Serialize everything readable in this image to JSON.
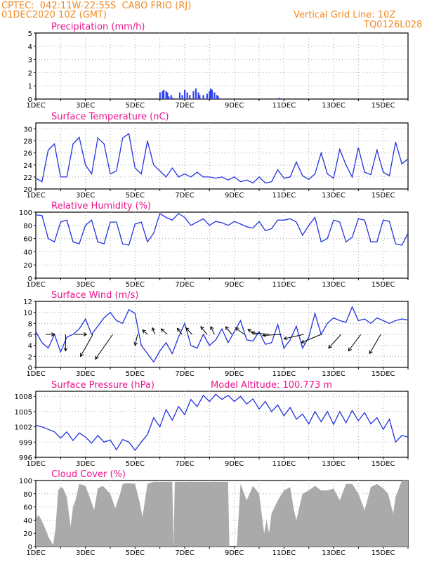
{
  "header": {
    "line1_left": "CPTEC:  042:11W-22:55S  CABO FRIO (RJ)",
    "line2_left": "01DEC2020 10Z (GMT)",
    "line1_right": "Vertical Grid Line: 10Z",
    "line2_right": "TQ0126L028"
  },
  "colors": {
    "title": "#e8158c",
    "series": "#2233dd",
    "header": "#f08a24",
    "cloud": "#aaaaaa",
    "bars": "#3344ee"
  },
  "chart_data": [
    {
      "type": "bar",
      "title": "Precipitation (mm/h)",
      "ylim": [
        0,
        5
      ],
      "yticks": [
        0,
        1,
        2,
        3,
        4,
        5
      ],
      "xlim": [
        1,
        16
      ],
      "xticks": [
        "1DEC",
        "3DEC",
        "5DEC",
        "7DEC",
        "9DEC",
        "11DEC",
        "13DEC",
        "15DEC"
      ],
      "x": [
        6.0,
        6.1,
        6.15,
        6.25,
        6.3,
        6.35,
        6.45,
        6.5,
        6.8,
        6.9,
        7.0,
        7.1,
        7.2,
        7.35,
        7.45,
        7.55,
        7.6,
        7.75,
        7.9,
        8.0,
        8.05,
        8.1,
        8.2,
        8.3,
        8.35,
        10.8
      ],
      "values": [
        0.5,
        0.6,
        0.7,
        0.6,
        0.5,
        0.2,
        0.3,
        0.1,
        0.5,
        0.3,
        0.7,
        0.5,
        0.3,
        0.6,
        0.8,
        0.5,
        0.3,
        0.3,
        0.4,
        0.6,
        0.8,
        0.7,
        0.5,
        0.3,
        0.2,
        0.1
      ]
    },
    {
      "type": "line",
      "title": "Surface Temperature (nC)",
      "ylim": [
        20,
        31
      ],
      "yticks": [
        20,
        22,
        24,
        26,
        28,
        30
      ],
      "xlim": [
        1,
        16
      ],
      "xticks": [
        "1DEC",
        "3DEC",
        "5DEC",
        "7DEC",
        "9DEC",
        "11DEC",
        "13DEC",
        "15DEC"
      ],
      "x": [
        1.0,
        1.25,
        1.5,
        1.75,
        2.0,
        2.25,
        2.5,
        2.75,
        3.0,
        3.25,
        3.5,
        3.75,
        4.0,
        4.25,
        4.5,
        4.75,
        5.0,
        5.25,
        5.5,
        5.75,
        6.0,
        6.25,
        6.5,
        6.75,
        7.0,
        7.25,
        7.5,
        7.75,
        8.0,
        8.25,
        8.5,
        8.75,
        9.0,
        9.25,
        9.5,
        9.75,
        10.0,
        10.25,
        10.5,
        10.75,
        11.0,
        11.25,
        11.5,
        11.75,
        12.0,
        12.25,
        12.5,
        12.75,
        13.0,
        13.25,
        13.5,
        13.75,
        14.0,
        14.25,
        14.5,
        14.75,
        15.0,
        15.25,
        15.5,
        15.75,
        16.0
      ],
      "values": [
        21.8,
        21.2,
        26.5,
        27.5,
        22.0,
        22.0,
        27.5,
        28.6,
        24.0,
        22.5,
        28.5,
        27.5,
        22.5,
        23.0,
        28.5,
        29.2,
        23.5,
        22.5,
        28.0,
        24.0,
        23.0,
        22.0,
        23.5,
        22.0,
        22.5,
        22.0,
        22.8,
        22.0,
        22.0,
        21.8,
        22.0,
        21.5,
        22.0,
        21.2,
        21.5,
        21.0,
        22.0,
        21.0,
        21.2,
        23.2,
        21.8,
        22.0,
        24.5,
        22.2,
        21.6,
        22.5,
        26.0,
        22.5,
        21.8,
        26.6,
        24.0,
        22.0,
        26.9,
        22.8,
        22.4,
        26.5,
        22.8,
        22.2,
        27.8,
        24.2,
        25.0
      ]
    },
    {
      "type": "line",
      "title": "Relative Humidity (%)",
      "ylim": [
        0,
        100
      ],
      "yticks": [
        0,
        20,
        40,
        60,
        80,
        100
      ],
      "xlim": [
        1,
        16
      ],
      "xticks": [
        "1DEC",
        "3DEC",
        "5DEC",
        "7DEC",
        "9DEC",
        "11DEC",
        "13DEC",
        "15DEC"
      ],
      "x": [
        1.0,
        1.25,
        1.5,
        1.75,
        2.0,
        2.25,
        2.5,
        2.75,
        3.0,
        3.25,
        3.5,
        3.75,
        4.0,
        4.25,
        4.5,
        4.75,
        5.0,
        5.25,
        5.5,
        5.75,
        6.0,
        6.25,
        6.5,
        6.75,
        7.0,
        7.25,
        7.5,
        7.75,
        8.0,
        8.25,
        8.5,
        8.75,
        9.0,
        9.25,
        9.5,
        9.75,
        10.0,
        10.25,
        10.5,
        10.75,
        11.0,
        11.25,
        11.5,
        11.75,
        12.0,
        12.25,
        12.5,
        12.75,
        13.0,
        13.25,
        13.5,
        13.75,
        14.0,
        14.25,
        14.5,
        14.75,
        15.0,
        15.25,
        15.5,
        15.75,
        16.0
      ],
      "values": [
        96,
        95,
        60,
        55,
        85,
        88,
        55,
        52,
        80,
        88,
        55,
        52,
        85,
        85,
        52,
        50,
        82,
        85,
        55,
        68,
        98,
        92,
        88,
        98,
        92,
        80,
        85,
        90,
        80,
        86,
        84,
        80,
        86,
        82,
        78,
        76,
        86,
        72,
        75,
        88,
        88,
        90,
        85,
        65,
        80,
        92,
        55,
        60,
        88,
        85,
        55,
        62,
        90,
        88,
        55,
        55,
        88,
        86,
        52,
        50,
        68
      ]
    },
    {
      "type": "line",
      "title": "Surface Wind (m/s)",
      "ylim": [
        0,
        12
      ],
      "yticks": [
        0,
        2,
        4,
        6,
        8,
        10,
        12
      ],
      "xlim": [
        1,
        16
      ],
      "xticks": [
        "1DEC",
        "3DEC",
        "5DEC",
        "7DEC",
        "9DEC",
        "11DEC",
        "13DEC",
        "15DEC"
      ],
      "x": [
        1.0,
        1.25,
        1.5,
        1.75,
        2.0,
        2.25,
        2.5,
        2.75,
        3.0,
        3.25,
        3.5,
        3.75,
        4.0,
        4.25,
        4.5,
        4.75,
        5.0,
        5.25,
        5.5,
        5.75,
        6.0,
        6.25,
        6.5,
        6.75,
        7.0,
        7.25,
        7.5,
        7.75,
        8.0,
        8.25,
        8.5,
        8.75,
        9.0,
        9.25,
        9.5,
        9.75,
        10.0,
        10.25,
        10.5,
        10.75,
        11.0,
        11.25,
        11.5,
        11.75,
        12.0,
        12.25,
        12.5,
        12.75,
        13.0,
        13.25,
        13.5,
        13.75,
        14.0,
        14.25,
        14.5,
        14.75,
        15.0,
        15.25,
        15.5,
        15.75,
        16.0
      ],
      "values": [
        6.5,
        4.5,
        3.5,
        6.0,
        2.8,
        5.5,
        6.0,
        7.0,
        8.8,
        6.0,
        7.5,
        9.0,
        10.0,
        8.5,
        8.0,
        10.5,
        9.8,
        4.0,
        2.5,
        1.0,
        3.0,
        4.5,
        2.5,
        5.5,
        8.0,
        4.0,
        3.5,
        6.0,
        4.0,
        5.0,
        7.0,
        4.5,
        6.5,
        8.5,
        5.0,
        4.8,
        6.5,
        4.2,
        4.5,
        7.8,
        3.5,
        5.0,
        7.5,
        3.5,
        5.5,
        9.8,
        6.0,
        8.0,
        9.0,
        8.5,
        8.2,
        11.0,
        8.5,
        8.8,
        8.0,
        9.0,
        8.5,
        8.0,
        8.5,
        8.8,
        8.6
      ],
      "arrows": [
        {
          "x": 1.4,
          "dx": 0.35,
          "dy": 0.0
        },
        {
          "x": 2.2,
          "dx": 0.0,
          "dy": -3.0
        },
        {
          "x": 2.55,
          "dx": 0.5,
          "dy": 0.0
        },
        {
          "x": 3.3,
          "dx": -0.5,
          "dy": -4.0
        },
        {
          "x": 4.1,
          "dx": -0.7,
          "dy": -4.5
        },
        {
          "x": 5.1,
          "dx": -0.1,
          "dy": -2.0
        },
        {
          "x": 5.5,
          "dx": -0.2,
          "dy": 0.8
        },
        {
          "x": 5.8,
          "dx": -0.1,
          "dy": 1.2
        },
        {
          "x": 6.3,
          "dx": -0.25,
          "dy": 1.0
        },
        {
          "x": 6.9,
          "dx": -0.2,
          "dy": 1.1
        },
        {
          "x": 7.3,
          "dx": -0.25,
          "dy": 1.2
        },
        {
          "x": 7.9,
          "dx": -0.25,
          "dy": 1.4
        },
        {
          "x": 8.2,
          "dx": -0.15,
          "dy": 1.4
        },
        {
          "x": 8.9,
          "dx": -0.25,
          "dy": 1.4
        },
        {
          "x": 9.4,
          "dx": -0.35,
          "dy": 1.2
        },
        {
          "x": 9.9,
          "dx": -0.35,
          "dy": 0.9
        },
        {
          "x": 10.4,
          "dx": -0.7,
          "dy": 0.3
        },
        {
          "x": 10.9,
          "dx": -0.75,
          "dy": -0.2
        },
        {
          "x": 11.8,
          "dx": -0.8,
          "dy": -0.8
        },
        {
          "x": 12.5,
          "dx": -0.8,
          "dy": -1.5
        },
        {
          "x": 13.3,
          "dx": -0.5,
          "dy": -2.5
        },
        {
          "x": 14.1,
          "dx": -0.5,
          "dy": -3.0
        },
        {
          "x": 14.9,
          "dx": -0.45,
          "dy": -3.5
        }
      ]
    },
    {
      "type": "line",
      "title": "Surface Pressure (hPa)",
      "annotation": "Model Altitude: 100.773 m",
      "ylim": [
        996,
        1009
      ],
      "yticks": [
        996,
        999,
        1002,
        1005,
        1008
      ],
      "xlim": [
        1,
        16
      ],
      "xticks": [
        "1DEC",
        "3DEC",
        "5DEC",
        "7DEC",
        "9DEC",
        "11DEC",
        "13DEC",
        "15DEC"
      ],
      "x": [
        1.0,
        1.25,
        1.5,
        1.75,
        2.0,
        2.25,
        2.5,
        2.75,
        3.0,
        3.25,
        3.5,
        3.75,
        4.0,
        4.25,
        4.5,
        4.75,
        5.0,
        5.25,
        5.5,
        5.75,
        6.0,
        6.25,
        6.5,
        6.75,
        7.0,
        7.25,
        7.5,
        7.75,
        8.0,
        8.25,
        8.5,
        8.75,
        9.0,
        9.25,
        9.5,
        9.75,
        10.0,
        10.25,
        10.5,
        10.75,
        11.0,
        11.25,
        11.5,
        11.75,
        12.0,
        12.25,
        12.5,
        12.75,
        13.0,
        13.25,
        13.5,
        13.75,
        14.0,
        14.25,
        14.5,
        14.75,
        15.0,
        15.25,
        15.5,
        15.75,
        16.0
      ],
      "values": [
        1002.3,
        1002.0,
        1001.5,
        1001.0,
        999.8,
        1001.0,
        999.3,
        1000.8,
        1000.0,
        998.8,
        1000.3,
        999.0,
        999.4,
        997.5,
        999.5,
        999.0,
        997.4,
        999.0,
        1000.5,
        1003.8,
        1002.0,
        1005.4,
        1003.3,
        1006.0,
        1004.4,
        1007.4,
        1006.0,
        1008.2,
        1007.0,
        1008.4,
        1007.4,
        1008.2,
        1007.0,
        1008.0,
        1006.5,
        1007.5,
        1005.5,
        1007.0,
        1005.0,
        1006.3,
        1004.2,
        1005.8,
        1003.5,
        1004.5,
        1002.6,
        1005.0,
        1003.0,
        1005.0,
        1002.5,
        1005.0,
        1002.8,
        1005.2,
        1003.2,
        1004.8,
        1002.6,
        1003.8,
        1001.5,
        1003.5,
        999.0,
        1000.3,
        1000.0
      ]
    },
    {
      "type": "area",
      "title": "Cloud Cover (%)",
      "ylim": [
        0,
        100
      ],
      "yticks": [
        0,
        20,
        40,
        60,
        80,
        100
      ],
      "xlim": [
        1,
        16
      ],
      "xticks": [
        "1DEC",
        "3DEC",
        "5DEC",
        "7DEC",
        "9DEC",
        "11DEC",
        "13DEC",
        "15DEC"
      ],
      "x": [
        1.0,
        1.1,
        1.2,
        1.35,
        1.5,
        1.7,
        1.8,
        1.9,
        2.0,
        2.1,
        2.25,
        2.4,
        2.5,
        2.6,
        2.75,
        3.0,
        3.2,
        3.35,
        3.5,
        3.7,
        4.0,
        4.2,
        4.4,
        4.5,
        4.7,
        5.0,
        5.2,
        5.3,
        5.5,
        5.75,
        6.0,
        6.25,
        6.5,
        6.55,
        6.6,
        7.0,
        7.5,
        8.0,
        8.5,
        8.75,
        8.8,
        8.9,
        9.0,
        9.1,
        9.25,
        9.5,
        9.75,
        10.0,
        10.2,
        10.3,
        10.4,
        10.5,
        10.75,
        11.0,
        11.25,
        11.4,
        11.5,
        11.75,
        12.0,
        12.25,
        12.5,
        12.75,
        13.0,
        13.25,
        13.5,
        13.75,
        14.0,
        14.25,
        14.5,
        14.75,
        15.0,
        15.2,
        15.4,
        15.5,
        15.75,
        16.0
      ],
      "values": [
        40,
        48,
        42,
        30,
        15,
        2,
        30,
        85,
        90,
        88,
        75,
        30,
        60,
        70,
        95,
        92,
        72,
        55,
        88,
        92,
        80,
        58,
        80,
        95,
        96,
        95,
        65,
        45,
        95,
        98,
        98,
        98,
        98,
        0,
        98,
        98,
        98,
        98,
        98,
        98,
        0,
        0,
        0,
        0,
        95,
        70,
        92,
        80,
        20,
        40,
        20,
        50,
        70,
        85,
        90,
        55,
        40,
        80,
        85,
        92,
        85,
        85,
        88,
        70,
        95,
        95,
        80,
        55,
        90,
        95,
        88,
        80,
        50,
        75,
        100,
        100
      ]
    }
  ]
}
